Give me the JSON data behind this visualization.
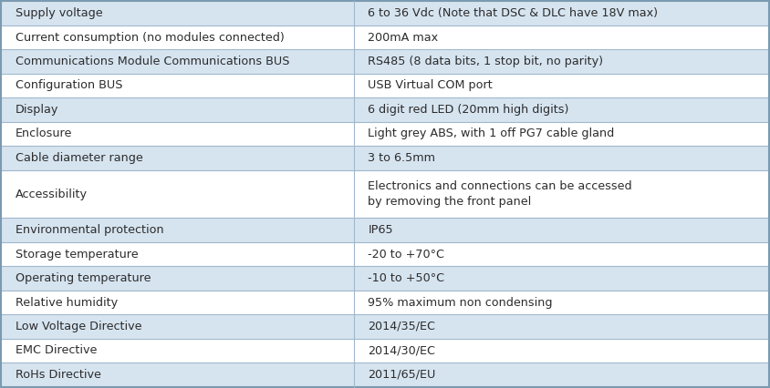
{
  "rows": [
    {
      "label": "Supply voltage",
      "value": "6 to 36 Vdc (Note that DSC & DLC have 18V max)",
      "bg": "#d6e4f0"
    },
    {
      "label": "Current consumption (no modules connected)",
      "value": "200mA max",
      "bg": "#ffffff"
    },
    {
      "label": "Communications Module Communications BUS",
      "value": "RS485 (8 data bits, 1 stop bit, no parity)",
      "bg": "#d6e4f0"
    },
    {
      "label": "Configuration BUS",
      "value": "USB Virtual COM port",
      "bg": "#ffffff"
    },
    {
      "label": "Display",
      "value": "6 digit red LED (20mm high digits)",
      "bg": "#d6e4f0"
    },
    {
      "label": "Enclosure",
      "value": "Light grey ABS, with 1 off PG7 cable gland",
      "bg": "#ffffff"
    },
    {
      "label": "Cable diameter range",
      "value": "3 to 6.5mm",
      "bg": "#d6e4f0"
    },
    {
      "label": "Accessibility",
      "value": "Electronics and connections can be accessed\nby removing the front panel",
      "bg": "#ffffff"
    },
    {
      "label": "Environmental protection",
      "value": "IP65",
      "bg": "#d6e4f0"
    },
    {
      "label": "Storage temperature",
      "value": "-20 to +70°C",
      "bg": "#ffffff"
    },
    {
      "label": "Operating temperature",
      "value": "-10 to +50°C",
      "bg": "#d6e4f0"
    },
    {
      "label": "Relative humidity",
      "value": "95% maximum non condensing",
      "bg": "#ffffff"
    },
    {
      "label": "Low Voltage Directive",
      "value": "2014/35/EC",
      "bg": "#d6e4f0"
    },
    {
      "label": "EMC Directive",
      "value": "2014/30/EC",
      "bg": "#ffffff"
    },
    {
      "label": "RoHs Directive",
      "value": "2011/65/EU",
      "bg": "#d6e4f0"
    }
  ],
  "col_split": 0.46,
  "text_color": "#2c2c2c",
  "font_size": 9.2,
  "border_color": "#a0b8cc",
  "outer_border_color": "#7a9ab0",
  "figsize": [
    8.44,
    4.26
  ],
  "dpi": 100
}
